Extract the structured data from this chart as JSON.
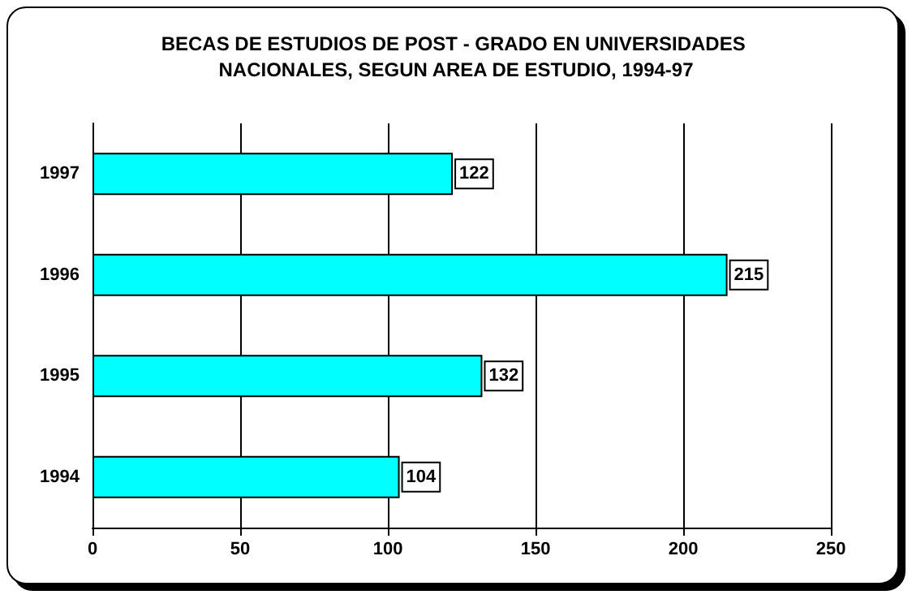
{
  "chart_data": {
    "type": "bar",
    "orientation": "horizontal",
    "title": "BECAS DE ESTUDIOS DE POST - GRADO EN UNIVERSIDADES NACIONALES, SEGUN AREA DE ESTUDIO, 1994-97",
    "categories": [
      "1997",
      "1996",
      "1995",
      "1994"
    ],
    "values": [
      122,
      215,
      132,
      104
    ],
    "color": "#00ffff",
    "xlim": [
      0,
      250
    ],
    "xticks": [
      0,
      50,
      100,
      150,
      200,
      250
    ],
    "grid": "x",
    "data_labels": true
  }
}
